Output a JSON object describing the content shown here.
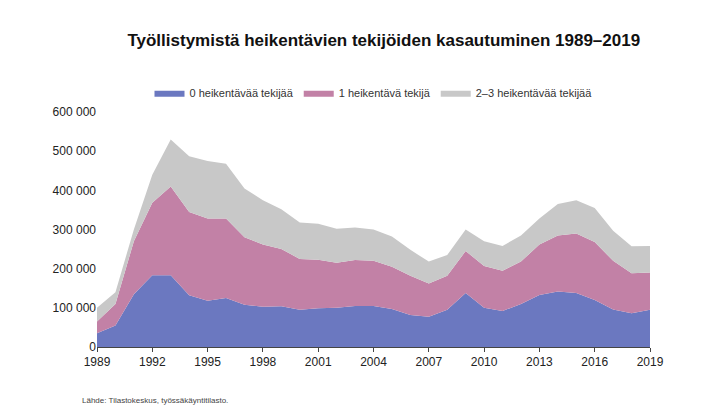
{
  "chart_data": {
    "type": "area",
    "stacked": true,
    "title": "Työllistymistä heikentävien tekijöiden kasautuminen 1989–2019",
    "source": "Lähde: Tilastokeskus, työssäkäyntitilasto.",
    "x": [
      1989,
      1990,
      1991,
      1992,
      1993,
      1994,
      1995,
      1996,
      1997,
      1998,
      1999,
      2000,
      2001,
      2002,
      2003,
      2004,
      2005,
      2006,
      2007,
      2008,
      2009,
      2010,
      2011,
      2012,
      2013,
      2014,
      2015,
      2016,
      2017,
      2018,
      2019
    ],
    "series": [
      {
        "name": "0 heikentävää tekijää",
        "color": "#6b78c0",
        "values": [
          35000,
          55000,
          135000,
          183000,
          183000,
          132000,
          118000,
          125000,
          108000,
          103000,
          104000,
          95000,
          99000,
          100000,
          105000,
          105000,
          97000,
          82000,
          77000,
          95000,
          138000,
          100000,
          92000,
          110000,
          133000,
          142000,
          138000,
          120000,
          96000,
          86000,
          95000
        ]
      },
      {
        "name": "1 heikentävä tekijä",
        "color": "#c281a6",
        "values": [
          30000,
          55000,
          135000,
          185000,
          227000,
          213000,
          210000,
          203000,
          172000,
          159000,
          146000,
          130000,
          124000,
          115000,
          117000,
          115000,
          108000,
          100000,
          85000,
          87000,
          107000,
          107000,
          103000,
          108000,
          129000,
          143000,
          152000,
          148000,
          124000,
          102000,
          95000
        ]
      },
      {
        "name": "2–3 heikentävää tekijää",
        "color": "#c8c8c8",
        "values": [
          35000,
          30000,
          30000,
          72000,
          120000,
          142000,
          147000,
          140000,
          125000,
          113000,
          102000,
          93000,
          92000,
          87000,
          83000,
          80000,
          77000,
          66000,
          56000,
          53000,
          55000,
          63000,
          63000,
          67000,
          66000,
          80000,
          85000,
          87000,
          77000,
          69000,
          68000
        ]
      }
    ],
    "xlim": [
      1989,
      2019
    ],
    "xticks": [
      1989,
      1992,
      1995,
      1998,
      2001,
      2004,
      2007,
      2010,
      2013,
      2016,
      2019
    ],
    "ylim": [
      0,
      600000
    ],
    "yticks": [
      0,
      {
        "value": 100000,
        "label": "100 000"
      },
      {
        "value": 200000,
        "label": "200 000"
      },
      {
        "value": 300000,
        "label": "300 000"
      },
      {
        "value": 400000,
        "label": "400 000"
      },
      {
        "value": 500000,
        "label": "500 000"
      },
      {
        "value": 600000,
        "label": "600 000"
      }
    ],
    "grid": false,
    "legend": "top"
  }
}
